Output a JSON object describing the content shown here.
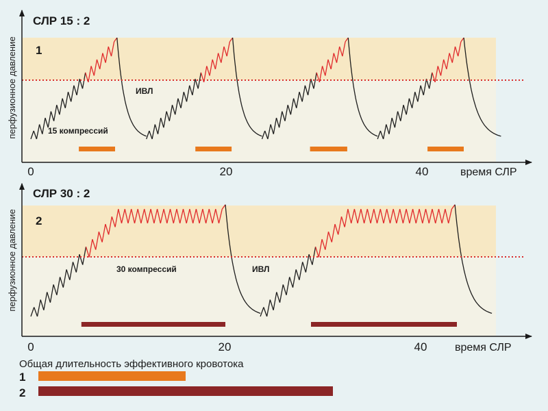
{
  "chart_data": [
    {
      "type": "line",
      "title": "СЛР 15 : 2",
      "panel_number": "1",
      "xlabel": "время СЛР",
      "ylabel": "перфузионное давление",
      "x_ticks": [
        "0",
        "20",
        "40"
      ],
      "xlim": [
        0,
        50
      ],
      "annotations": [
        "ИВЛ",
        "15 компрессий"
      ],
      "compressions_per_cycle": 15,
      "cycle_starts": [
        0,
        11.8,
        23.6,
        35.4
      ],
      "compression_duration": 8.8,
      "effective_threshold": 0.55,
      "peak_level": 1.0,
      "effective_bars": [
        [
          4.9,
          8.6
        ],
        [
          16.8,
          20.5
        ],
        [
          28.5,
          32.3
        ],
        [
          40.5,
          44.2
        ]
      ],
      "colors": {
        "below": "#1e1e1e",
        "above": "#e0292b",
        "bar": "#e8791d",
        "threshold": "#d92b2b",
        "zone": "#f7e8c4"
      }
    },
    {
      "type": "line",
      "title": "СЛР 30 : 2",
      "panel_number": "2",
      "xlabel": "время СЛР",
      "ylabel": "перфузионное давление",
      "x_ticks": [
        "0",
        "20",
        "40"
      ],
      "xlim": [
        0,
        50
      ],
      "annotations": [
        "30 компрессий",
        "ИВЛ"
      ],
      "compressions_per_cycle": 30,
      "cycle_starts": [
        0,
        23.6
      ],
      "compression_duration": 20.0,
      "effective_threshold": 0.55,
      "peak_level": 1.0,
      "effective_bars": [
        [
          5.2,
          20.0
        ],
        [
          28.8,
          43.8
        ]
      ],
      "colors": {
        "below": "#1e1e1e",
        "above": "#e0292b",
        "bar": "#8b2626",
        "threshold": "#d92b2b",
        "zone": "#f7e8c4"
      }
    }
  ],
  "summary": {
    "title": "Общая длительность эффективного кровотока",
    "rows": [
      {
        "label": "1",
        "value": 15.0,
        "color": "#e8791d"
      },
      {
        "label": "2",
        "value": 30.0,
        "color": "#8b2626"
      }
    ],
    "scale_max": 30.0
  }
}
